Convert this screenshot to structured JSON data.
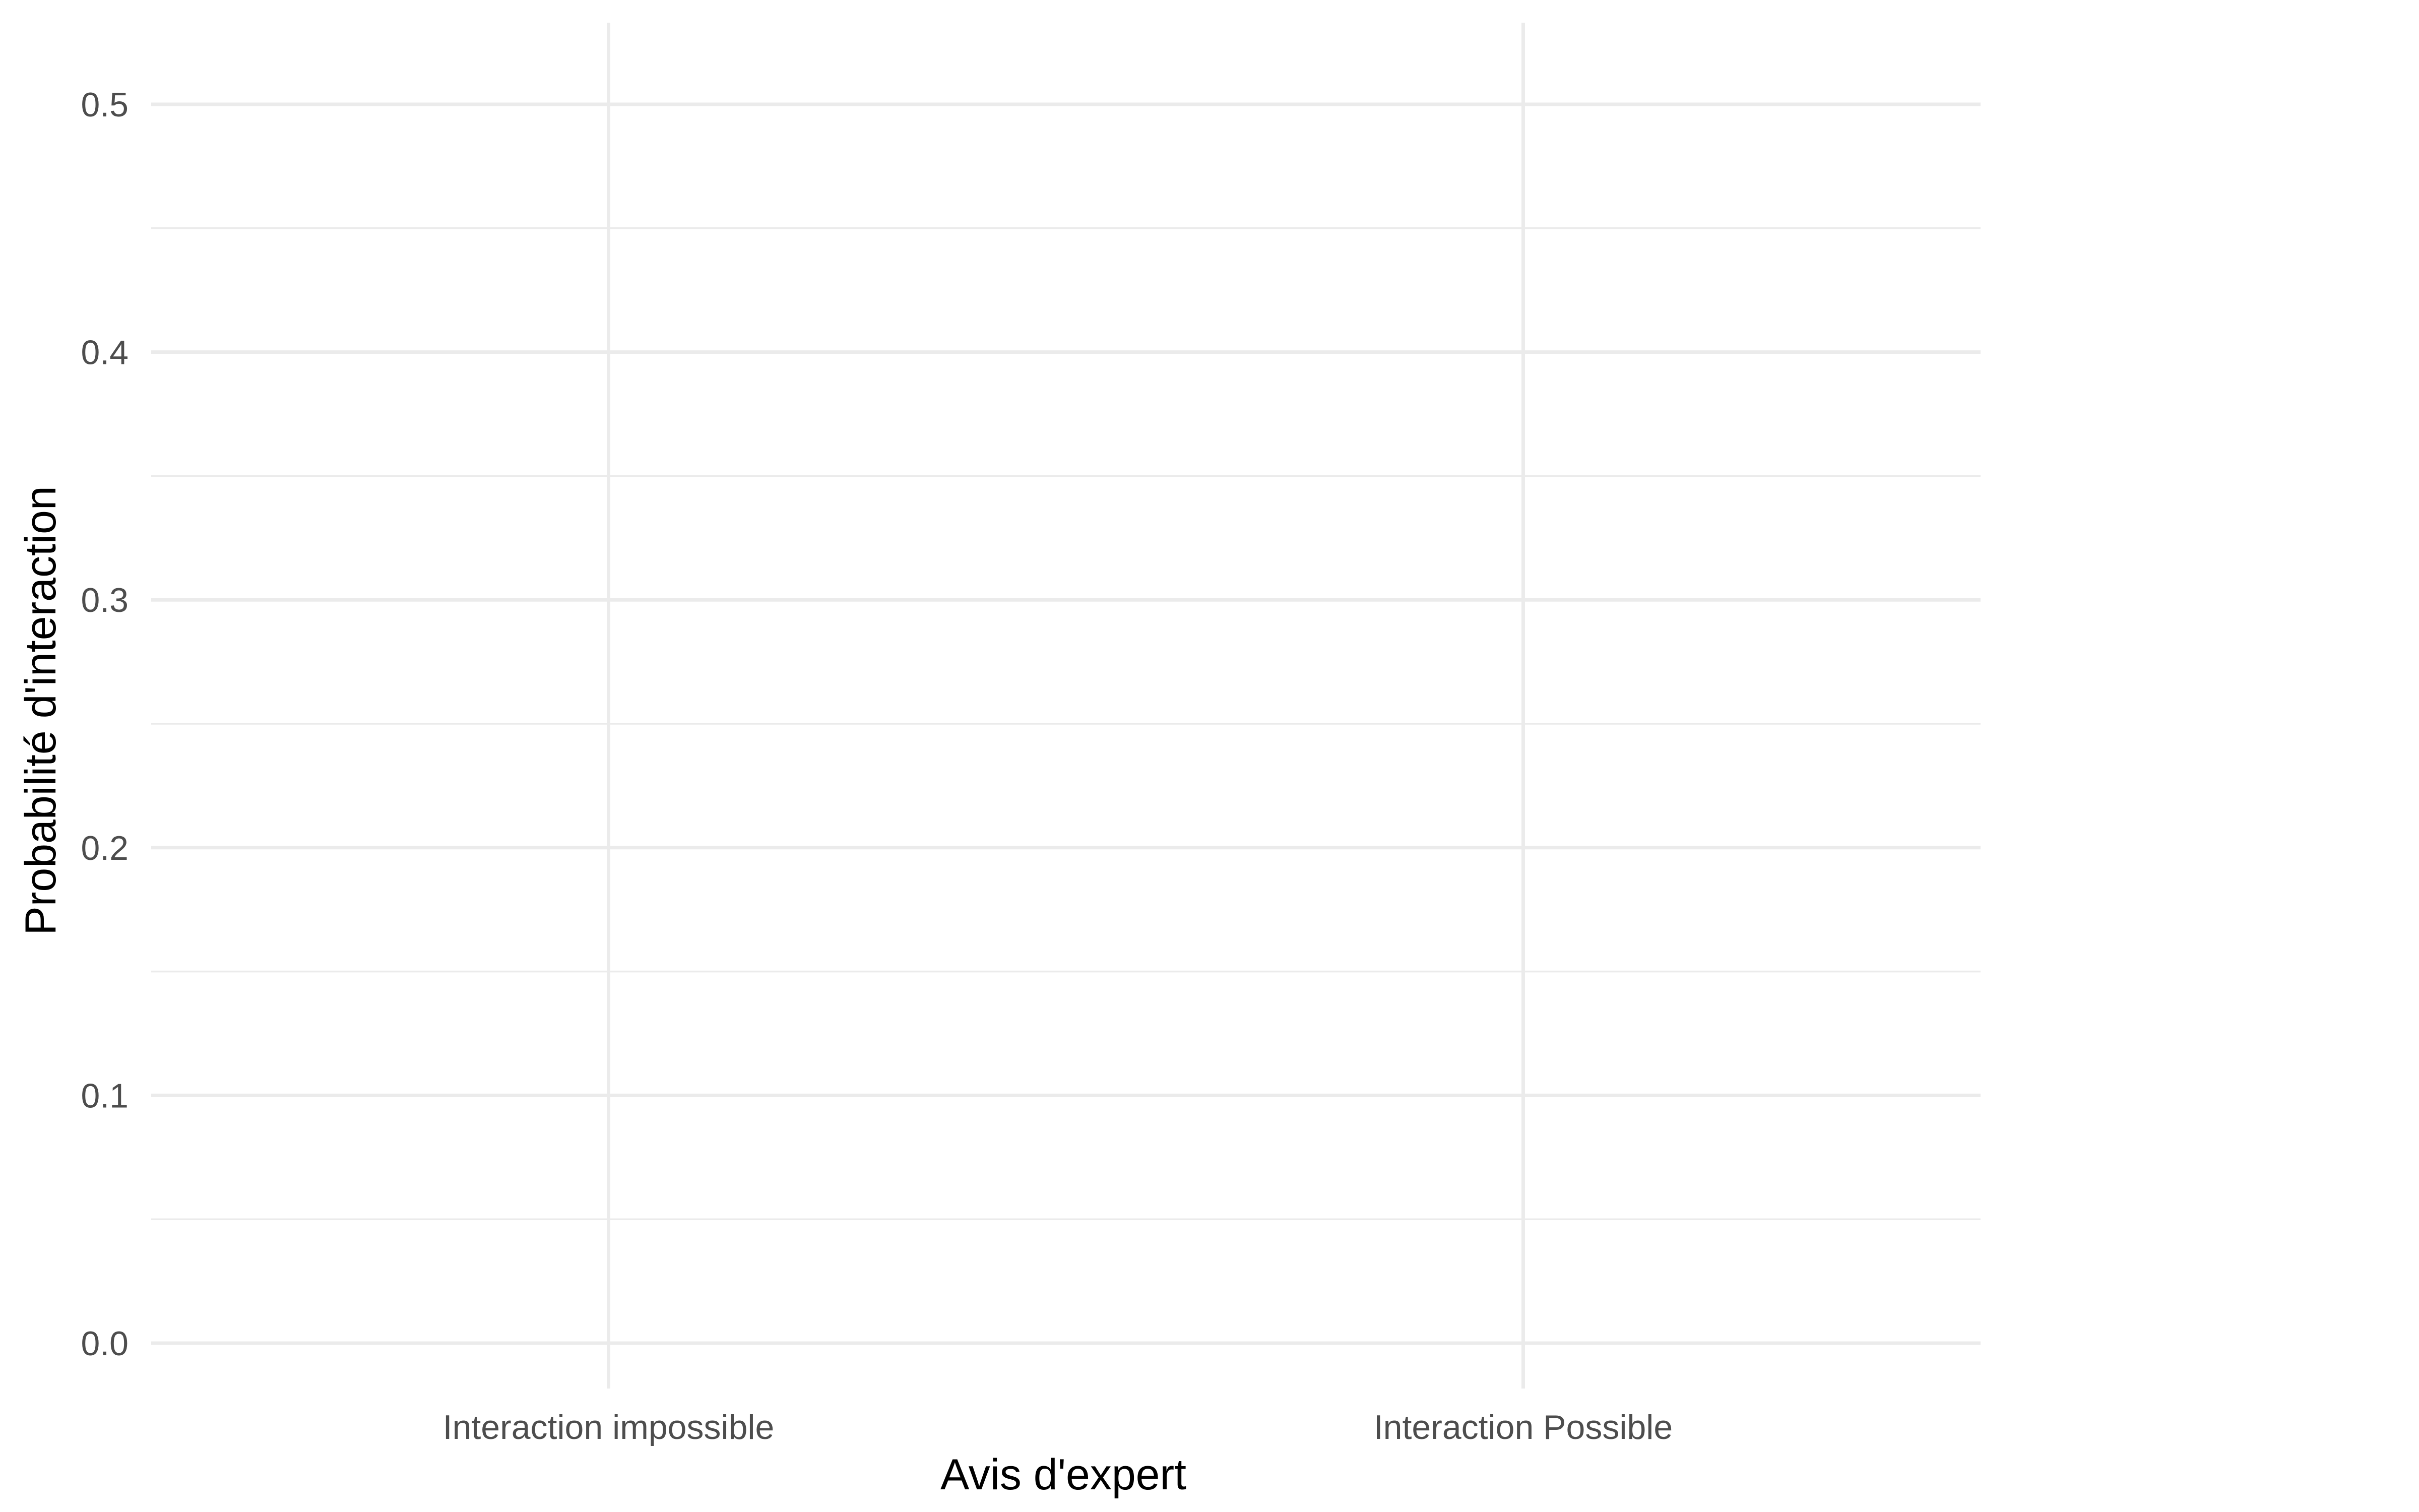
{
  "chart_data": {
    "type": "bar",
    "title": "",
    "xlabel": "Avis d'expert",
    "ylabel": "Probabilité d'interaction",
    "categories": [
      "Interaction impossible",
      "Interaction Possible"
    ],
    "ylim": [
      0,
      0.5
    ],
    "yticks": [
      "0.0",
      "0.1",
      "0.2",
      "0.3",
      "0.4",
      "0.5"
    ],
    "grid": true,
    "legend": "none",
    "colors": {
      "grid": "#ebebeb",
      "tick_text": "#4d4d4d",
      "axis_title": "#000000",
      "background": "#ffffff"
    }
  }
}
